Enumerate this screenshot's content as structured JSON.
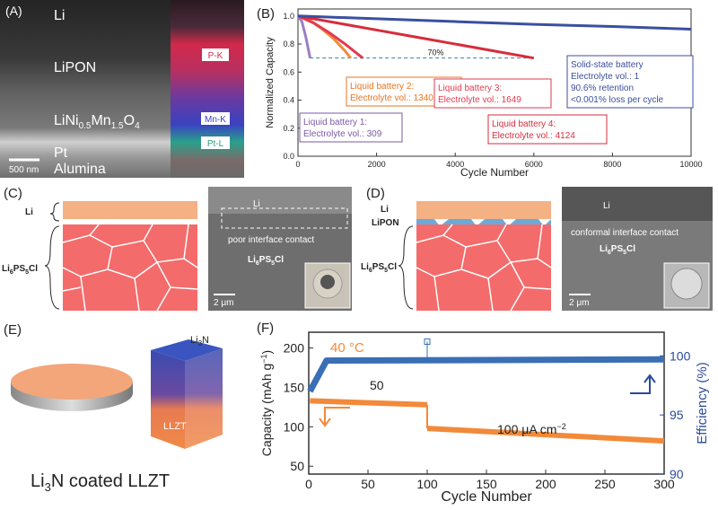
{
  "panels": {
    "A": {
      "label": "(A)",
      "layers": [
        "Li",
        "LiPON",
        "LiNi",
        "0.5",
        "Mn",
        "1.5",
        "O",
        "4",
        "Pt",
        "Alumina"
      ],
      "scalebar": "500 nm",
      "eds": [
        "P-K",
        "Mn-K",
        "Pt-L"
      ]
    },
    "C": {
      "label": "(C)",
      "li": "Li",
      "lps": "Li",
      "lps_6": "6",
      "lps_ps": "PS",
      "lps_5": "5",
      "lps_cl": "Cl",
      "sem_li": "Li",
      "sem_text": "poor interface contact",
      "scalebar": "2 μm"
    },
    "D": {
      "label": "(D)",
      "li": "Li",
      "lipon": "LiPON",
      "sem_li": "Li",
      "sem_text": "conformal interface contact",
      "scalebar": "2 μm"
    },
    "E": {
      "label": "(E)",
      "caption_pre": "Li",
      "caption_sub": "3",
      "caption_post": "N coated LLZT",
      "cube_top_pre": "Li",
      "cube_top_sub": "3",
      "cube_top_post": "N",
      "cube_bottom": "LLZT"
    }
  },
  "chart_data": [
    {
      "panel": "(B)",
      "type": "line",
      "xlabel": "Cycle Number",
      "ylabel": "Normalized Capacity",
      "xlim": [
        0,
        10000
      ],
      "ylim": [
        0,
        1.05
      ],
      "xticks": [
        0,
        2000,
        4000,
        6000,
        8000,
        10000
      ],
      "yticks": [
        0.0,
        0.2,
        0.4,
        0.6,
        0.8,
        1.0
      ],
      "reference_line": {
        "y": 0.7,
        "label": "70%"
      },
      "series": [
        {
          "name": "Liquid battery 1",
          "color": "#9b7fc4",
          "x": [
            0,
            100,
            200,
            309
          ],
          "y": [
            1.0,
            0.96,
            0.85,
            0.7
          ]
        },
        {
          "name": "Liquid battery 2",
          "color": "#f28a3a",
          "x": [
            0,
            300,
            600,
            900,
            1200,
            1340
          ],
          "y": [
            1.0,
            0.97,
            0.91,
            0.84,
            0.75,
            0.7
          ]
        },
        {
          "name": "Liquid battery 3",
          "color": "#e23b4e",
          "x": [
            0,
            400,
            800,
            1200,
            1649
          ],
          "y": [
            1.0,
            0.95,
            0.88,
            0.8,
            0.7
          ]
        },
        {
          "name": "Liquid battery 4",
          "color": "#d62d3c",
          "x": [
            0,
            1000,
            2000,
            3000,
            4000,
            5000,
            6000
          ],
          "y": [
            1.0,
            0.95,
            0.9,
            0.85,
            0.8,
            0.75,
            0.7
          ]
        },
        {
          "name": "Solid-state battery",
          "color": "#3b4fa0",
          "x": [
            0,
            2000,
            4000,
            6000,
            8000,
            10000
          ],
          "y": [
            1.0,
            0.98,
            0.96,
            0.94,
            0.925,
            0.906
          ]
        }
      ],
      "annotations": [
        {
          "lines": [
            "Liquid battery 1:",
            "Electrolyte vol.: 309"
          ],
          "color": "#7a5aa8"
        },
        {
          "lines": [
            "Liquid battery 2:",
            "Electrolyte vol.: 1340"
          ],
          "color": "#e8741f"
        },
        {
          "lines": [
            "Liquid battery 3:",
            "Electrolyte vol.: 1649"
          ],
          "color": "#e23b4e"
        },
        {
          "lines": [
            "Liquid battery 4:",
            "Electrolyte vol.: 4124"
          ],
          "color": "#d62d3c"
        },
        {
          "lines": [
            "Solid-state battery",
            "Electrolyte vol.: 1",
            "90.6% retention",
            "<0.001% loss per cycle"
          ],
          "color": "#3b4fa0"
        }
      ]
    },
    {
      "panel": "(F)",
      "type": "scatter",
      "xlabel": "Cycle Number",
      "ylabel_left_pre": "Capacity (mAh g",
      "ylabel_left_sup": "−1",
      "ylabel_left_post": ")",
      "ylabel_right": "Efficiency (%)",
      "xlim": [
        0,
        300
      ],
      "ylim_left": [
        40,
        220
      ],
      "ylim_right": [
        90,
        102
      ],
      "xticks": [
        0,
        50,
        100,
        150,
        200,
        250,
        300
      ],
      "yticks_left": [
        50,
        100,
        150,
        200
      ],
      "yticks_right": [
        90,
        95,
        100
      ],
      "temperature": "40 °C",
      "rate1": "50",
      "rate2_pre": "100 μA cm",
      "rate2_sup": "−2",
      "series": [
        {
          "name": "Capacity",
          "axis": "left",
          "color": "#f28a3a",
          "segments": [
            {
              "x": [
                1,
                100
              ],
              "y": [
                133,
                128
              ]
            },
            {
              "x": [
                100,
                300
              ],
              "y": [
                98,
                82
              ]
            }
          ]
        },
        {
          "name": "Efficiency",
          "axis": "right",
          "color": "#3a6fb5",
          "segments": [
            {
              "x": [
                1,
                15,
                300
              ],
              "y": [
                97,
                99.6,
                99.7
              ]
            }
          ],
          "outlier": {
            "x": 100,
            "y": 101.2
          }
        }
      ]
    }
  ]
}
